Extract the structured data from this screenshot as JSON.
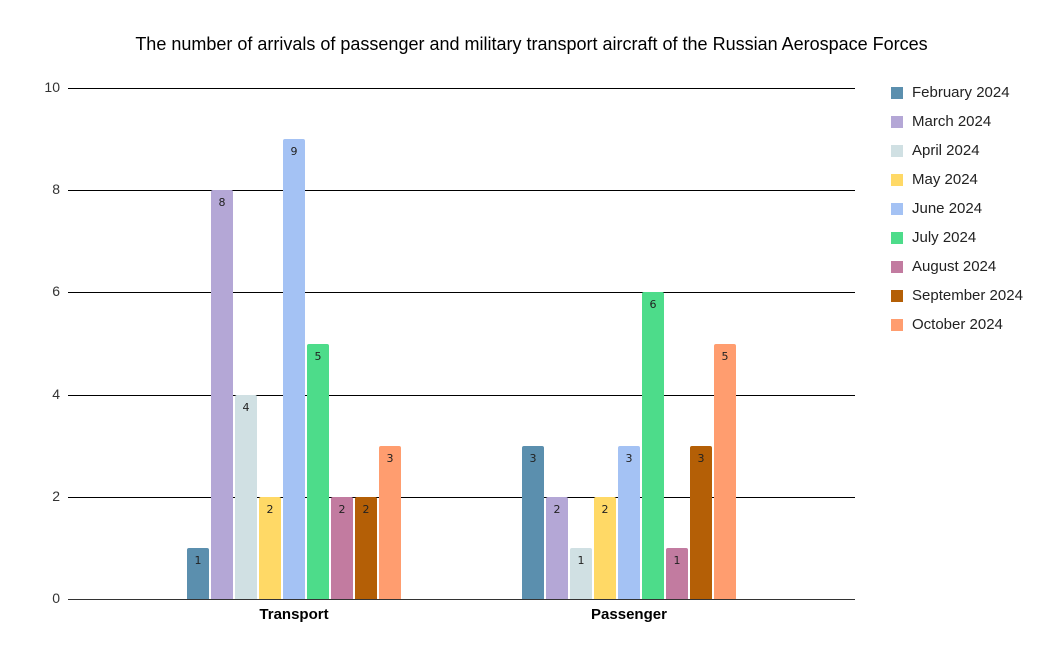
{
  "chart_data": {
    "type": "bar",
    "title": "The number of arrivals of passenger and military transport aircraft of the Russian Aerospace Forces",
    "xlabel": "",
    "ylabel": "",
    "ylim": [
      0,
      10
    ],
    "yticks": [
      "0",
      "2",
      "4",
      "6",
      "8",
      "10"
    ],
    "grid": true,
    "legend_position": "right",
    "categories": [
      "Transport",
      "Passenger"
    ],
    "series": [
      {
        "name": "February 2024",
        "color": "#5b8fae",
        "values": [
          1,
          3
        ]
      },
      {
        "name": "March 2024",
        "color": "#b4a7d6",
        "values": [
          8,
          2
        ]
      },
      {
        "name": "April 2024",
        "color": "#d0e0e3",
        "values": [
          4,
          1
        ]
      },
      {
        "name": "May 2024",
        "color": "#ffd966",
        "values": [
          2,
          2
        ]
      },
      {
        "name": "June 2024",
        "color": "#a4c2f4",
        "values": [
          9,
          3
        ]
      },
      {
        "name": "July 2024",
        "color": "#4ddc8a",
        "values": [
          5,
          6
        ]
      },
      {
        "name": "August 2024",
        "color": "#c27ba0",
        "values": [
          2,
          1
        ]
      },
      {
        "name": "September 2024",
        "color": "#b45f06",
        "values": [
          2,
          3
        ]
      },
      {
        "name": "October 2024",
        "color": "#ff9d6f",
        "values": [
          3,
          5
        ]
      }
    ]
  }
}
